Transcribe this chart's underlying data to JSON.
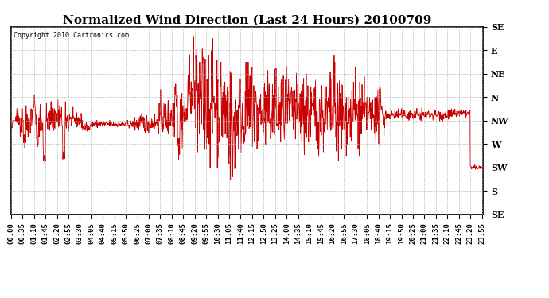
{
  "title": "Normalized Wind Direction (Last 24 Hours) 20100709",
  "copyright_text": "Copyright 2010 Cartronics.com",
  "line_color": "#CC0000",
  "background_color": "#ffffff",
  "grid_color": "#b0b0b0",
  "ytick_labels": [
    "SE",
    "S",
    "SW",
    "W",
    "NW",
    "N",
    "NE",
    "E",
    "SE"
  ],
  "ytick_values": [
    0,
    1,
    2,
    3,
    4,
    5,
    6,
    7,
    8
  ],
  "ylim": [
    0,
    8
  ],
  "title_fontsize": 11,
  "tick_fontsize": 6.5,
  "seed": 42,
  "figsize": [
    6.9,
    3.75
  ],
  "dpi": 100
}
